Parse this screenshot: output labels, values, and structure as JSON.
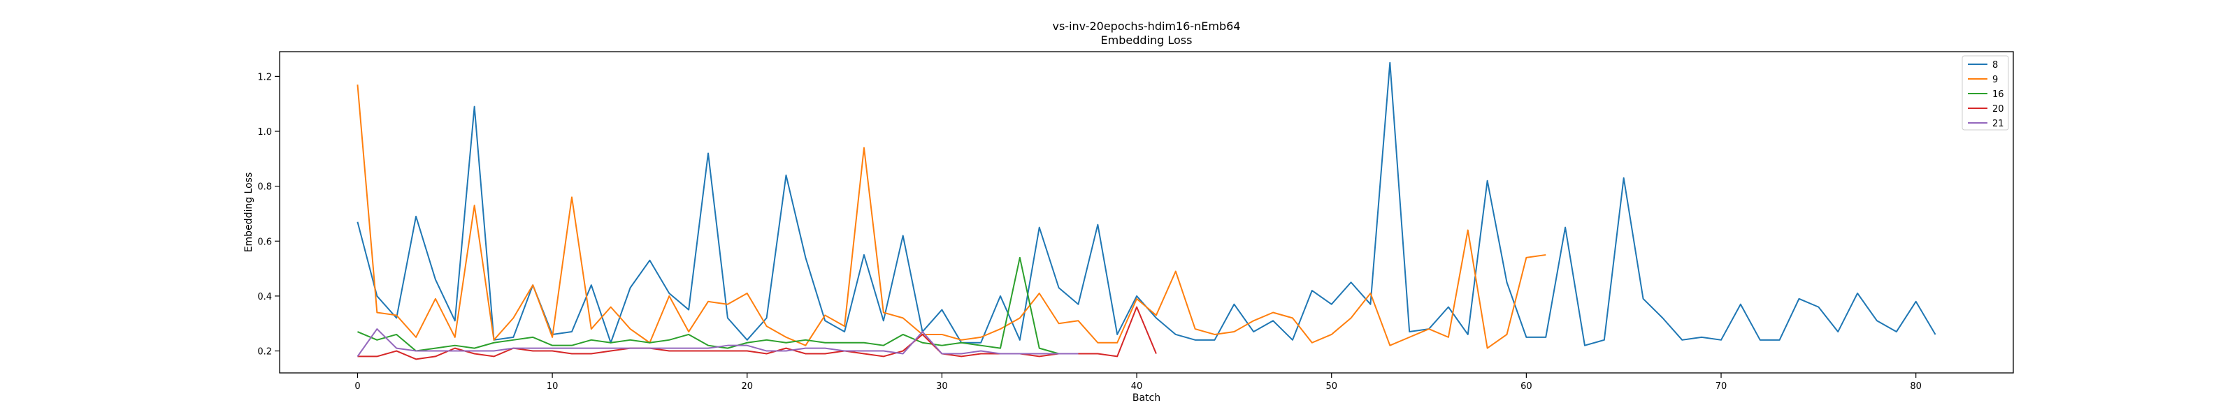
{
  "chart_data": {
    "type": "line",
    "title": "vs-inv-20epochs-hdim16-nEmb64",
    "subtitle": "Embedding Loss",
    "xlabel": "Batch",
    "ylabel": "Embedding Loss",
    "xlim": [
      -4,
      85
    ],
    "ylim": [
      0.12,
      1.29
    ],
    "xticks": [
      0,
      10,
      20,
      30,
      40,
      50,
      60,
      70,
      80
    ],
    "yticks": [
      0.2,
      0.4,
      0.6,
      0.8,
      1.0,
      1.2
    ],
    "ytick_labels": [
      "0.2",
      "0.4",
      "0.6",
      "0.8",
      "1.0",
      "1.2"
    ],
    "grid": false,
    "legend_position": "top-right",
    "series": [
      {
        "name": "8",
        "color": "#1f77b4",
        "values": [
          0.67,
          0.4,
          0.32,
          0.69,
          0.46,
          0.31,
          1.09,
          0.24,
          0.25,
          0.44,
          0.26,
          0.27,
          0.44,
          0.23,
          0.43,
          0.53,
          0.41,
          0.35,
          0.92,
          0.32,
          0.24,
          0.32,
          0.84,
          0.54,
          0.31,
          0.27,
          0.55,
          0.31,
          0.62,
          0.27,
          0.35,
          0.23,
          0.23,
          0.4,
          0.24,
          0.65,
          0.43,
          0.37,
          0.66,
          0.26,
          0.4,
          0.32,
          0.26,
          0.24,
          0.24,
          0.37,
          0.27,
          0.31,
          0.24,
          0.42,
          0.37,
          0.45,
          0.37,
          1.25,
          0.27,
          0.28,
          0.36,
          0.26,
          0.82,
          0.45,
          0.25,
          0.25,
          0.65,
          0.22,
          0.24,
          0.83,
          0.39,
          0.32,
          0.24,
          0.25,
          0.24,
          0.37,
          0.24,
          0.24,
          0.39,
          0.36,
          0.27,
          0.41,
          0.31,
          0.27,
          0.38,
          0.26
        ]
      },
      {
        "name": "9",
        "color": "#ff7f0e",
        "values": [
          1.17,
          0.34,
          0.33,
          0.25,
          0.39,
          0.25,
          0.73,
          0.24,
          0.32,
          0.44,
          0.25,
          0.76,
          0.28,
          0.36,
          0.28,
          0.23,
          0.4,
          0.27,
          0.38,
          0.37,
          0.41,
          0.29,
          0.25,
          0.22,
          0.33,
          0.29,
          0.94,
          0.34,
          0.32,
          0.26,
          0.26,
          0.24,
          0.25,
          0.28,
          0.32,
          0.41,
          0.3,
          0.31,
          0.23,
          0.23,
          0.39,
          0.33,
          0.49,
          0.28,
          0.26,
          0.27,
          0.31,
          0.34,
          0.32,
          0.23,
          0.26,
          0.32,
          0.41,
          0.22,
          0.25,
          0.28,
          0.25,
          0.64,
          0.21,
          0.26,
          0.54,
          0.55
        ]
      },
      {
        "name": "16",
        "color": "#2ca02c",
        "values": [
          0.27,
          0.24,
          0.26,
          0.2,
          0.21,
          0.22,
          0.21,
          0.23,
          0.24,
          0.25,
          0.22,
          0.22,
          0.24,
          0.23,
          0.24,
          0.23,
          0.24,
          0.26,
          0.22,
          0.21,
          0.23,
          0.24,
          0.23,
          0.24,
          0.23,
          0.23,
          0.23,
          0.22,
          0.26,
          0.23,
          0.22,
          0.23,
          0.22,
          0.21,
          0.54,
          0.21,
          0.19,
          0.19
        ]
      },
      {
        "name": "20",
        "color": "#d62728",
        "values": [
          0.18,
          0.18,
          0.2,
          0.17,
          0.18,
          0.21,
          0.19,
          0.18,
          0.21,
          0.2,
          0.2,
          0.19,
          0.19,
          0.2,
          0.21,
          0.21,
          0.2,
          0.2,
          0.2,
          0.2,
          0.2,
          0.19,
          0.21,
          0.19,
          0.19,
          0.2,
          0.19,
          0.18,
          0.2,
          0.26,
          0.19,
          0.18,
          0.19,
          0.19,
          0.19,
          0.18,
          0.19,
          0.19,
          0.19,
          0.18,
          0.36,
          0.19
        ]
      },
      {
        "name": "21",
        "color": "#9467bd",
        "values": [
          0.18,
          0.28,
          0.21,
          0.2,
          0.2,
          0.2,
          0.2,
          0.2,
          0.21,
          0.21,
          0.21,
          0.21,
          0.21,
          0.21,
          0.21,
          0.21,
          0.21,
          0.21,
          0.21,
          0.22,
          0.22,
          0.2,
          0.2,
          0.21,
          0.21,
          0.2,
          0.2,
          0.2,
          0.19,
          0.27,
          0.19,
          0.19,
          0.2,
          0.19,
          0.19,
          0.19,
          0.19,
          0.19
        ]
      }
    ]
  }
}
